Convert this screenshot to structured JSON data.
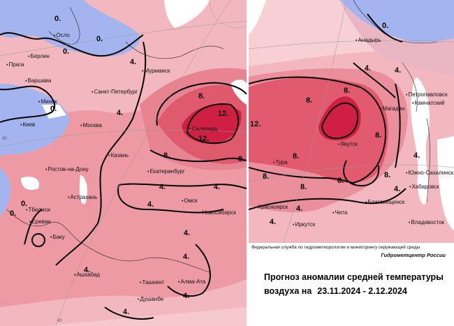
{
  "agency": "Федеральная служба по гидрометеорологии и мониторингу окружающей среды",
  "center": "Гидрометцентр России",
  "title_line1": "Прогноз аномалии средней температуры",
  "title_line2_prefix": "воздуха на",
  "period": "23.11.2024 -  2.12.2024",
  "west": {
    "cities": [
      "Осло",
      "Берлин",
      "Прага",
      "Варшава",
      "Минск",
      "Киев",
      "Ростов-на-Дону",
      "Тбилиси",
      "Ереван",
      "Баку",
      "Астрахань",
      "Москва",
      "Санкт-Петербург",
      "Мурманск",
      "Казань",
      "Екатеринбург",
      "Салехард",
      "Омск",
      "Новосибирск",
      "Ашхабад",
      "Ташкент",
      "Алма-Ата",
      "Душанбе"
    ],
    "isolines": [
      "0.",
      "0.",
      "0.",
      "0.",
      "0.",
      "0.",
      "4.",
      "4.",
      "4.",
      "4.",
      "4.",
      "4.",
      "4.",
      "4.",
      "4.",
      "4.",
      "8.",
      "8.",
      "8.",
      "12.",
      "12."
    ],
    "grid_labels": [
      "30",
      "60"
    ]
  },
  "east": {
    "cities": [
      "Анадырь",
      "Петропавловск",
      "Камчатский",
      "Магадан",
      "Якутск",
      "Тура",
      "Южно-Сахалинск",
      "Хабаровск",
      "Благовещенск",
      "Красноярск",
      "Иркутск",
      "Чита",
      "Владивосток"
    ],
    "isolines": [
      "0.",
      "4.",
      "4.",
      "4.",
      "4.",
      "4.",
      "4.",
      "8.",
      "8.",
      "8.",
      "8.",
      "8.",
      "8.",
      "8.",
      "8.",
      "12."
    ]
  },
  "colors": {
    "warm_light": "#f3b8bf",
    "warm_mid": "#ec8f9c",
    "warm_strong": "#e25a6e",
    "warm_max": "#cf2043",
    "cold": "#a4b4ee",
    "white": "#ffffff"
  }
}
